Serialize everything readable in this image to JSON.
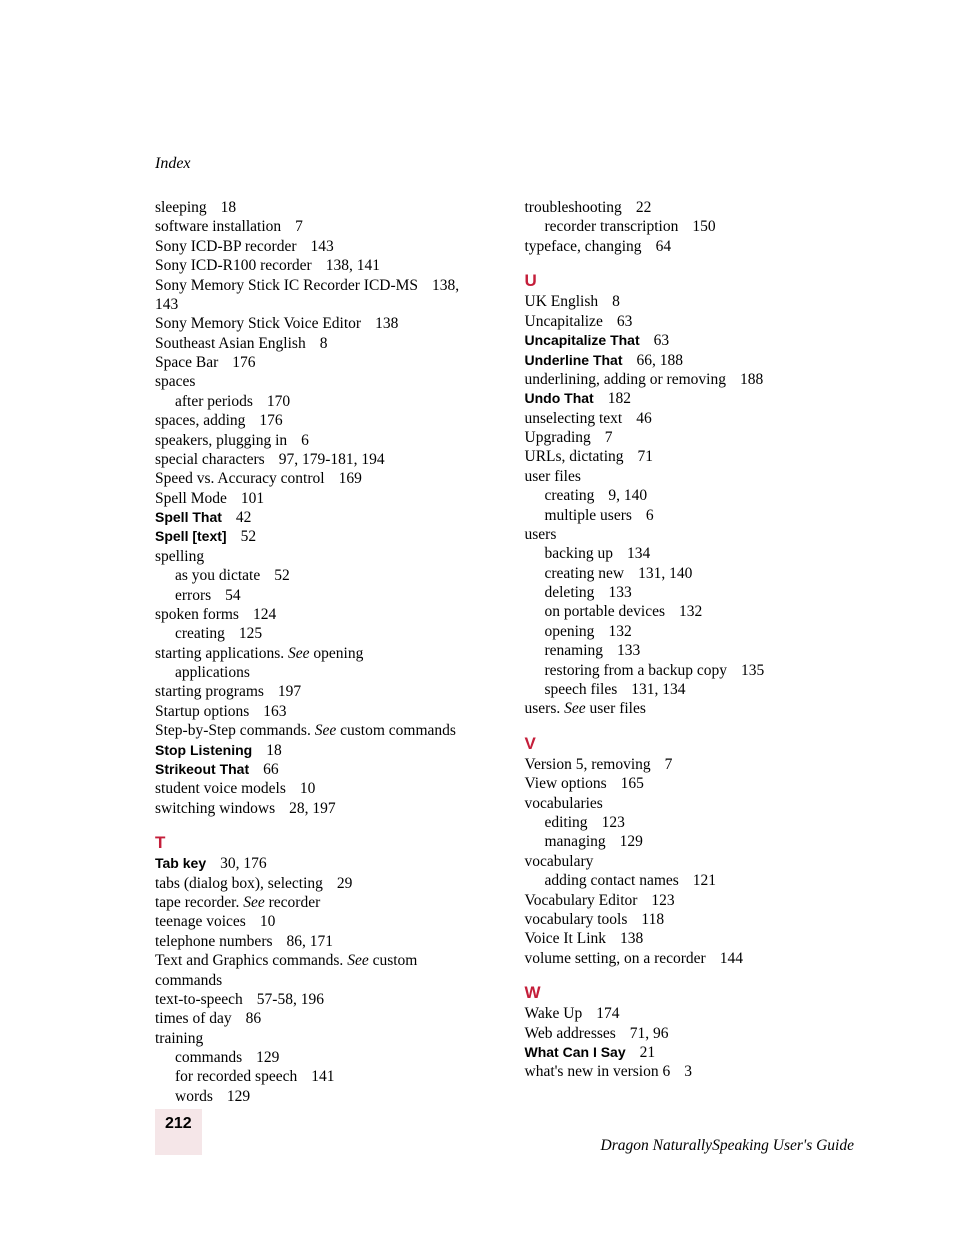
{
  "running_head": "Index",
  "page_number": "212",
  "footer_title": "Dragon NaturallySpeaking User's Guide",
  "colors": {
    "section_letter": "#c41e3a",
    "page_num_bg": "#f5e6e8",
    "text": "#000000",
    "background": "#ffffff"
  },
  "typography": {
    "body_font": "Garamond serif",
    "bold_font": "Arial sans-serif",
    "body_size_pt": 11,
    "letter_size_pt": 13
  },
  "left_column": [
    {
      "t": "e",
      "term": "sleeping",
      "pages": "18"
    },
    {
      "t": "e",
      "term": "software installation",
      "pages": "7"
    },
    {
      "t": "e",
      "term": "Sony ICD-BP recorder",
      "pages": "143"
    },
    {
      "t": "e",
      "term": "Sony ICD-R100 recorder",
      "pages": "138, 141"
    },
    {
      "t": "e",
      "term": "Sony Memory Stick IC Recorder ICD-MS",
      "pages": "138, 143"
    },
    {
      "t": "e",
      "term": "Sony Memory Stick Voice Editor",
      "pages": "138"
    },
    {
      "t": "e",
      "term": "Southeast Asian English",
      "pages": "8"
    },
    {
      "t": "e",
      "term": "Space Bar",
      "pages": "176"
    },
    {
      "t": "e",
      "term": "spaces",
      "pages": ""
    },
    {
      "t": "s",
      "term": "after periods",
      "pages": "170"
    },
    {
      "t": "e",
      "term": "spaces, adding",
      "pages": "176"
    },
    {
      "t": "e",
      "term": "speakers, plugging in",
      "pages": "6"
    },
    {
      "t": "e",
      "term": "special characters",
      "pages": "97, 179-181, 194"
    },
    {
      "t": "e",
      "term": "Speed vs. Accuracy control",
      "pages": "169"
    },
    {
      "t": "e",
      "term": "Spell Mode",
      "pages": "101"
    },
    {
      "t": "b",
      "term": "Spell That",
      "pages": "42"
    },
    {
      "t": "b",
      "term": "Spell [text]",
      "pages": "52"
    },
    {
      "t": "e",
      "term": "spelling",
      "pages": ""
    },
    {
      "t": "s",
      "term": "as you dictate",
      "pages": "52"
    },
    {
      "t": "s",
      "term": "errors",
      "pages": "54"
    },
    {
      "t": "e",
      "term": "spoken forms",
      "pages": "124"
    },
    {
      "t": "s",
      "term": "creating",
      "pages": "125"
    },
    {
      "t": "see",
      "term": "starting applications.",
      "see": "opening applications"
    },
    {
      "t": "e",
      "term": "starting programs",
      "pages": "197"
    },
    {
      "t": "e",
      "term": "Startup options",
      "pages": "163"
    },
    {
      "t": "see",
      "term": "Step-by-Step commands.",
      "see": "custom commands"
    },
    {
      "t": "b",
      "term": "Stop Listening",
      "pages": "18"
    },
    {
      "t": "b",
      "term": "Strikeout That",
      "pages": "66"
    },
    {
      "t": "e",
      "term": "student voice models",
      "pages": "10"
    },
    {
      "t": "e",
      "term": "switching windows",
      "pages": "28, 197"
    },
    {
      "t": "L",
      "letter": "T"
    },
    {
      "t": "b",
      "term": "Tab key",
      "pages": "30, 176"
    },
    {
      "t": "e",
      "term": "tabs (dialog box), selecting",
      "pages": "29"
    },
    {
      "t": "see",
      "term": "tape recorder.",
      "see": "recorder"
    },
    {
      "t": "e",
      "term": "teenage voices",
      "pages": "10"
    },
    {
      "t": "e",
      "term": "telephone numbers",
      "pages": "86, 171"
    },
    {
      "t": "see",
      "term": "Text and Graphics commands.",
      "see": "custom commands"
    },
    {
      "t": "e",
      "term": "text-to-speech",
      "pages": "57-58, 196"
    },
    {
      "t": "e",
      "term": "times of day",
      "pages": "86"
    },
    {
      "t": "e",
      "term": "training",
      "pages": ""
    },
    {
      "t": "s",
      "term": "commands",
      "pages": "129"
    },
    {
      "t": "s",
      "term": "for recorded speech",
      "pages": "141"
    },
    {
      "t": "s",
      "term": "words",
      "pages": "129"
    }
  ],
  "right_column": [
    {
      "t": "e",
      "term": "troubleshooting",
      "pages": "22"
    },
    {
      "t": "s",
      "term": "recorder transcription",
      "pages": "150"
    },
    {
      "t": "e",
      "term": "typeface, changing",
      "pages": "64"
    },
    {
      "t": "L",
      "letter": "U"
    },
    {
      "t": "e",
      "term": "UK English",
      "pages": "8"
    },
    {
      "t": "e",
      "term": "Uncapitalize",
      "pages": "63"
    },
    {
      "t": "b",
      "term": "Uncapitalize That",
      "pages": "63"
    },
    {
      "t": "b",
      "term": "Underline That",
      "pages": "66, 188"
    },
    {
      "t": "e",
      "term": "underlining, adding or removing",
      "pages": "188"
    },
    {
      "t": "b",
      "term": "Undo That",
      "pages": "182"
    },
    {
      "t": "e",
      "term": "unselecting text",
      "pages": "46"
    },
    {
      "t": "e",
      "term": "Upgrading",
      "pages": "7"
    },
    {
      "t": "e",
      "term": "URLs, dictating",
      "pages": "71"
    },
    {
      "t": "e",
      "term": "user files",
      "pages": ""
    },
    {
      "t": "s",
      "term": "creating",
      "pages": "9, 140"
    },
    {
      "t": "s",
      "term": "multiple users",
      "pages": "6"
    },
    {
      "t": "e",
      "term": "users",
      "pages": ""
    },
    {
      "t": "s",
      "term": "backing up",
      "pages": "134"
    },
    {
      "t": "s",
      "term": "creating new",
      "pages": "131, 140"
    },
    {
      "t": "s",
      "term": "deleting",
      "pages": "133"
    },
    {
      "t": "s",
      "term": "on portable devices",
      "pages": "132"
    },
    {
      "t": "s",
      "term": "opening",
      "pages": "132"
    },
    {
      "t": "s",
      "term": "renaming",
      "pages": "133"
    },
    {
      "t": "s",
      "term": "restoring from a backup copy",
      "pages": "135"
    },
    {
      "t": "s",
      "term": "speech files",
      "pages": "131, 134"
    },
    {
      "t": "see",
      "term": "users.",
      "see": "user files"
    },
    {
      "t": "L",
      "letter": "V"
    },
    {
      "t": "e",
      "term": "Version 5, removing",
      "pages": "7"
    },
    {
      "t": "e",
      "term": "View options",
      "pages": "165"
    },
    {
      "t": "e",
      "term": "vocabularies",
      "pages": ""
    },
    {
      "t": "s",
      "term": "editing",
      "pages": "123"
    },
    {
      "t": "s",
      "term": "managing",
      "pages": "129"
    },
    {
      "t": "e",
      "term": "vocabulary",
      "pages": ""
    },
    {
      "t": "s",
      "term": "adding contact names",
      "pages": "121"
    },
    {
      "t": "e",
      "term": "Vocabulary Editor",
      "pages": "123"
    },
    {
      "t": "e",
      "term": "vocabulary tools",
      "pages": "118"
    },
    {
      "t": "e",
      "term": "Voice It Link",
      "pages": "138"
    },
    {
      "t": "e",
      "term": "volume setting, on a recorder",
      "pages": "144"
    },
    {
      "t": "L",
      "letter": "W"
    },
    {
      "t": "e",
      "term": "Wake Up",
      "pages": "174"
    },
    {
      "t": "e",
      "term": "Web addresses",
      "pages": "71, 96"
    },
    {
      "t": "b",
      "term": "What Can I Say",
      "pages": "21"
    },
    {
      "t": "e",
      "term": "what's new in version 6",
      "pages": "3"
    }
  ]
}
